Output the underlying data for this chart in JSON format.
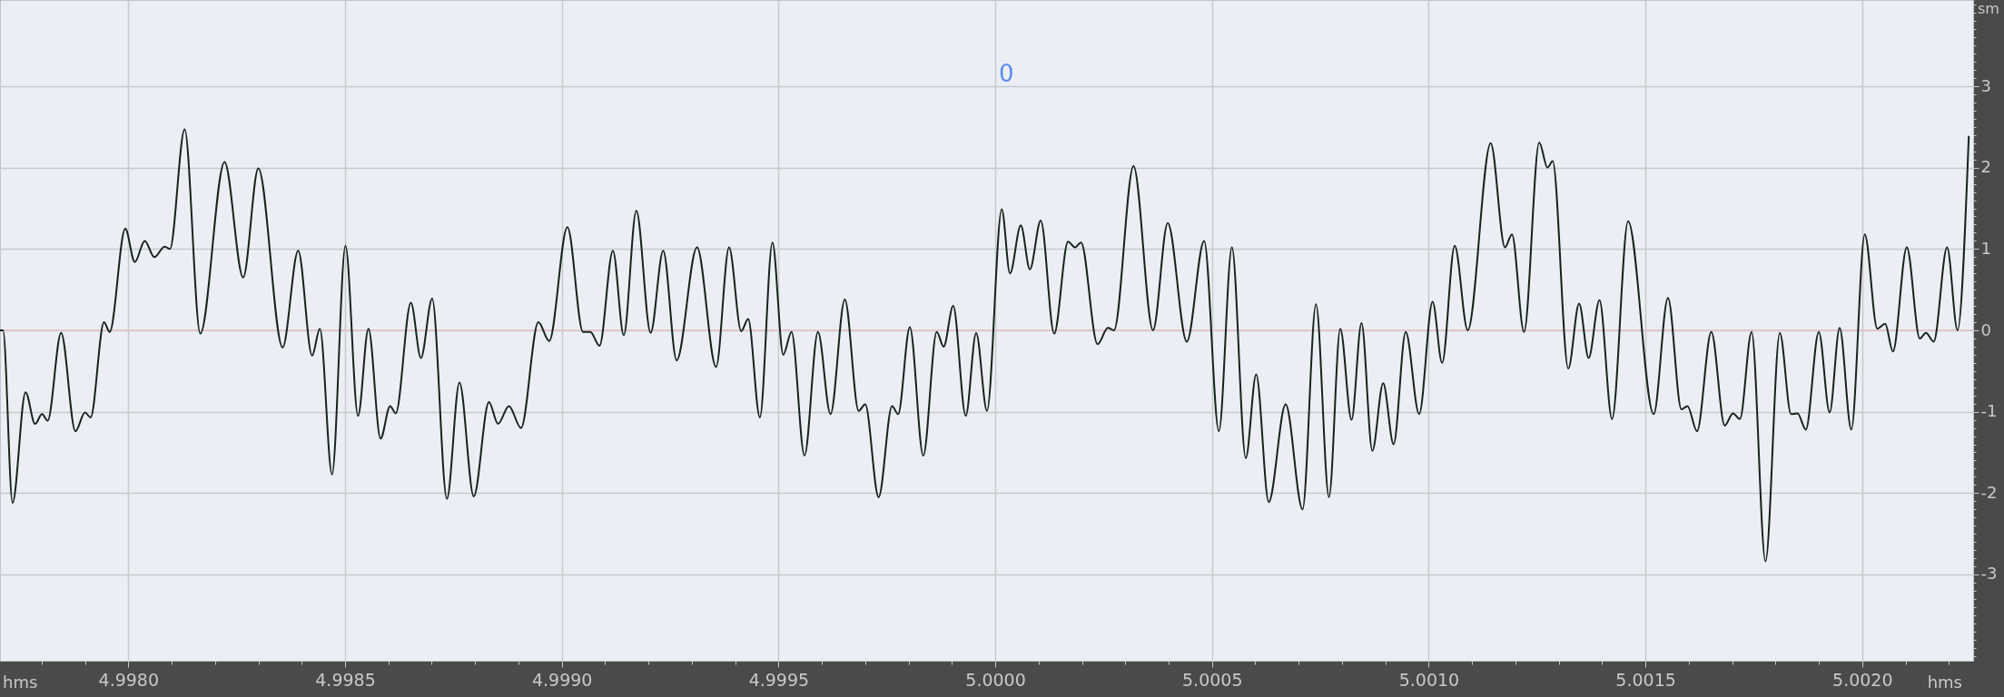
{
  "chart_data": {
    "type": "line",
    "xlabel": "hms",
    "ylabel": "sm",
    "annotations": [
      "0"
    ],
    "x": [
      4.997704,
      4.997711,
      4.997733,
      4.997763,
      4.997785,
      4.997801,
      4.997814,
      4.997845,
      4.997878,
      4.9979,
      4.997913,
      4.997944,
      4.997957,
      4.997993,
      4.998015,
      4.998038,
      4.99806,
      4.998084,
      4.998096,
      4.99813,
      4.998166,
      4.998222,
      4.998265,
      4.9983,
      4.998356,
      4.998392,
      4.998424,
      4.998442,
      4.99847,
      4.998501,
      4.99853,
      4.998554,
      4.998582,
      4.998604,
      4.998617,
      4.998652,
      4.998675,
      4.998701,
      4.998735,
      4.998764,
      4.998797,
      4.998832,
      4.998853,
      4.998878,
      4.998906,
      4.998946,
      4.998971,
      4.999013,
      4.999049,
      4.999066,
      4.999087,
      4.999118,
      4.999143,
      4.999172,
      4.999205,
      4.999234,
      4.999265,
      4.999312,
      4.999356,
      4.999386,
      4.999414,
      4.99943,
      4.999457,
      4.999486,
      4.999511,
      4.99953,
      4.99956,
      4.999591,
      4.99962,
      4.999653,
      4.999685,
      4.9997,
      4.999731,
      4.999762,
      4.999776,
      4.999803,
      4.999834,
      4.999865,
      4.999881,
      4.999903,
      4.999932,
      4.999956,
      4.999981,
      5.000015,
      5.000034,
      5.000059,
      5.00008,
      5.000105,
      5.000136,
      5.000168,
      5.000184,
      5.000198,
      5.000236,
      5.00026,
      5.000274,
      5.000319,
      5.000364,
      5.000398,
      5.000442,
      5.000482,
      5.000516,
      5.000546,
      5.000578,
      5.000602,
      5.000631,
      5.00067,
      5.000709,
      5.00074,
      5.00077,
      5.000796,
      5.000822,
      5.000845,
      5.00087,
      5.000895,
      5.000919,
      5.000947,
      5.000978,
      5.001009,
      5.001031,
      5.00106,
      5.00109,
      5.001143,
      5.001176,
      5.001192,
      5.00122,
      5.001255,
      5.001274,
      5.001286,
      5.001322,
      5.001347,
      5.001369,
      5.001394,
      5.001423,
      5.00146,
      5.001519,
      5.001552,
      5.001583,
      5.001597,
      5.001619,
      5.001652,
      5.001683,
      5.001702,
      5.001718,
      5.001745,
      5.001777,
      5.00181,
      5.001836,
      5.001851,
      5.00187,
      5.0019,
      5.001925,
      5.001948,
      5.001975,
      5.002006,
      5.002035,
      5.002053,
      5.002071,
      5.002103,
      5.002133,
      5.002147,
      5.002165,
      5.002196,
      5.00222,
      5.002246
    ],
    "series": [
      {
        "color": "#16241e",
        "values": [
          0.0,
          0.0,
          -2.12,
          -0.76,
          -1.15,
          -1.03,
          -1.11,
          -0.03,
          -1.24,
          -1.01,
          -1.07,
          0.1,
          -0.02,
          1.25,
          0.84,
          1.1,
          0.9,
          1.03,
          1.0,
          2.47,
          -0.04,
          2.07,
          0.65,
          1.99,
          -0.21,
          0.98,
          -0.31,
          0.02,
          -1.77,
          1.04,
          -1.05,
          0.02,
          -1.33,
          -0.93,
          -1.02,
          0.34,
          -0.34,
          0.39,
          -2.07,
          -0.64,
          -2.04,
          -0.88,
          -1.15,
          -0.93,
          -1.2,
          0.1,
          -0.13,
          1.27,
          -0.02,
          -0.02,
          -0.19,
          0.98,
          -0.06,
          1.47,
          -0.03,
          0.98,
          -0.37,
          1.02,
          -0.45,
          1.02,
          -0.01,
          0.14,
          -1.07,
          1.08,
          -0.3,
          -0.02,
          -1.54,
          -0.02,
          -1.03,
          0.38,
          -0.99,
          -0.91,
          -2.05,
          -0.93,
          -1.03,
          0.04,
          -1.54,
          -0.02,
          -0.2,
          0.3,
          -1.05,
          -0.03,
          -0.99,
          1.49,
          0.7,
          1.29,
          0.75,
          1.35,
          -0.04,
          1.09,
          1.02,
          1.08,
          -0.17,
          0.03,
          0.0,
          2.02,
          0.0,
          1.32,
          -0.14,
          1.1,
          -1.24,
          1.02,
          -1.57,
          -0.54,
          -2.11,
          -0.91,
          -2.2,
          0.32,
          -2.05,
          0.02,
          -1.1,
          0.09,
          -1.48,
          -0.65,
          -1.4,
          -0.02,
          -1.03,
          0.35,
          -0.4,
          1.04,
          0.0,
          2.3,
          1.02,
          1.18,
          -0.02,
          2.31,
          2.0,
          2.08,
          -0.47,
          0.33,
          -0.34,
          0.37,
          -1.09,
          1.34,
          -1.03,
          0.4,
          -0.97,
          -0.93,
          -1.24,
          -0.02,
          -1.17,
          -1.02,
          -1.09,
          -0.02,
          -2.84,
          -0.03,
          -1.03,
          -1.02,
          -1.22,
          -0.02,
          -1.01,
          0.03,
          -1.22,
          1.18,
          0.02,
          0.08,
          -0.26,
          1.02,
          -0.1,
          -0.03,
          -0.14,
          1.02,
          0.0,
          2.39
        ]
      }
    ],
    "xlim": [
      4.997704,
      5.002256
    ],
    "ylim": [
      -4.06,
      4.06
    ],
    "xticks": [
      {
        "value": 4.9978,
        "label": null
      },
      {
        "value": 4.9979,
        "label": null
      },
      {
        "value": 4.998,
        "label": "4.9980"
      },
      {
        "value": 4.9981,
        "label": null
      },
      {
        "value": 4.9982,
        "label": null
      },
      {
        "value": 4.9983,
        "label": null
      },
      {
        "value": 4.9984,
        "label": null
      },
      {
        "value": 4.9985,
        "label": "4.9985"
      },
      {
        "value": 4.9986,
        "label": null
      },
      {
        "value": 4.9987,
        "label": null
      },
      {
        "value": 4.9988,
        "label": null
      },
      {
        "value": 4.9989,
        "label": null
      },
      {
        "value": 4.999,
        "label": "4.9990"
      },
      {
        "value": 4.9991,
        "label": null
      },
      {
        "value": 4.9992,
        "label": null
      },
      {
        "value": 4.9993,
        "label": null
      },
      {
        "value": 4.9994,
        "label": null
      },
      {
        "value": 4.9995,
        "label": "4.9995"
      },
      {
        "value": 4.9996,
        "label": null
      },
      {
        "value": 4.9997,
        "label": null
      },
      {
        "value": 4.9998,
        "label": null
      },
      {
        "value": 4.9999,
        "label": null
      },
      {
        "value": 5.0,
        "label": "5.0000"
      },
      {
        "value": 5.0001,
        "label": null
      },
      {
        "value": 5.0002,
        "label": null
      },
      {
        "value": 5.0003,
        "label": null
      },
      {
        "value": 5.0004,
        "label": null
      },
      {
        "value": 5.0005,
        "label": "5.0005"
      },
      {
        "value": 5.0006,
        "label": null
      },
      {
        "value": 5.0007,
        "label": null
      },
      {
        "value": 5.0008,
        "label": null
      },
      {
        "value": 5.0009,
        "label": null
      },
      {
        "value": 5.001,
        "label": "5.0010"
      },
      {
        "value": 5.0011,
        "label": null
      },
      {
        "value": 5.0012,
        "label": null
      },
      {
        "value": 5.0013,
        "label": null
      },
      {
        "value": 5.0014,
        "label": null
      },
      {
        "value": 5.0015,
        "label": "5.0015"
      },
      {
        "value": 5.0016,
        "label": null
      },
      {
        "value": 5.0017,
        "label": null
      },
      {
        "value": 5.0018,
        "label": null
      },
      {
        "value": 5.0019,
        "label": null
      },
      {
        "value": 5.002,
        "label": "5.0020"
      },
      {
        "value": 5.0021,
        "label": null
      },
      {
        "value": 5.0022,
        "label": null
      }
    ],
    "yticks": [
      {
        "value": -4,
        "label": null
      },
      {
        "value": -3.9,
        "label": null
      },
      {
        "value": -3.8,
        "label": null
      },
      {
        "value": -3.7,
        "label": null
      },
      {
        "value": -3.6,
        "label": null
      },
      {
        "value": -3.5,
        "label": null
      },
      {
        "value": -3.4,
        "label": null
      },
      {
        "value": -3.3,
        "label": null
      },
      {
        "value": -3.2,
        "label": null
      },
      {
        "value": -3.1,
        "label": null
      },
      -3,
      {
        "value": -2.9,
        "label": null
      },
      {
        "value": -2.8,
        "label": null
      },
      {
        "value": -2.7,
        "label": null
      },
      {
        "value": -2.6,
        "label": null
      },
      {
        "value": -2.5,
        "label": null
      },
      {
        "value": -2.4,
        "label": null
      },
      {
        "value": -2.3,
        "label": null
      },
      {
        "value": -2.2,
        "label": null
      },
      {
        "value": -2.1,
        "label": null
      },
      -2,
      {
        "value": -1.9,
        "label": null
      },
      {
        "value": -1.8,
        "label": null
      },
      {
        "value": -1.7,
        "label": null
      },
      {
        "value": -1.6,
        "label": null
      },
      {
        "value": -1.5,
        "label": null
      },
      {
        "value": -1.4,
        "label": null
      },
      {
        "value": -1.3,
        "label": null
      },
      {
        "value": -1.2,
        "label": null
      },
      {
        "value": -1.1,
        "label": null
      },
      -1,
      {
        "value": -0.9,
        "label": null
      },
      {
        "value": -0.8,
        "label": null
      },
      {
        "value": -0.7,
        "label": null
      },
      {
        "value": -0.6,
        "label": null
      },
      {
        "value": -0.5,
        "label": null
      },
      {
        "value": -0.4,
        "label": null
      },
      {
        "value": -0.3,
        "label": null
      },
      {
        "value": -0.2,
        "label": null
      },
      {
        "value": -0.1,
        "label": null
      },
      0,
      {
        "value": 0.1,
        "label": null
      },
      {
        "value": 0.2,
        "label": null
      },
      {
        "value": 0.3,
        "label": null
      },
      {
        "value": 0.4,
        "label": null
      },
      {
        "value": 0.5,
        "label": null
      },
      {
        "value": 0.6,
        "label": null
      },
      {
        "value": 0.7,
        "label": null
      },
      {
        "value": 0.8,
        "label": null
      },
      {
        "value": 0.9,
        "label": null
      },
      1,
      {
        "value": 1.1,
        "label": null
      },
      {
        "value": 1.2,
        "label": null
      },
      {
        "value": 1.3,
        "label": null
      },
      {
        "value": 1.4,
        "label": null
      },
      {
        "value": 1.5,
        "label": null
      },
      {
        "value": 1.6,
        "label": null
      },
      {
        "value": 1.7,
        "label": null
      },
      {
        "value": 1.8,
        "label": null
      },
      {
        "value": 1.9,
        "label": null
      },
      2,
      {
        "value": 2.1,
        "label": null
      },
      {
        "value": 2.2,
        "label": null
      },
      {
        "value": 2.3,
        "label": null
      },
      {
        "value": 2.4,
        "label": null
      },
      {
        "value": 2.5,
        "label": null
      },
      {
        "value": 2.6,
        "label": null
      },
      {
        "value": 2.7,
        "label": null
      },
      {
        "value": 2.8,
        "label": null
      },
      {
        "value": 2.9,
        "label": null
      },
      3,
      {
        "value": 3.1,
        "label": null
      },
      {
        "value": 3.2,
        "label": null
      },
      {
        "value": 3.3,
        "label": null
      },
      {
        "value": 3.4,
        "label": null
      },
      {
        "value": 3.5,
        "label": null
      },
      {
        "value": 3.6,
        "label": null
      },
      {
        "value": 3.7,
        "label": null
      },
      {
        "value": 3.8,
        "label": null
      },
      {
        "value": 3.9,
        "label": null
      },
      {
        "value": 4,
        "label": null
      }
    ],
    "grid": true,
    "ref_lines": [
      {
        "axis": "y",
        "value": 0,
        "color": "#e2c6c9"
      }
    ]
  }
}
